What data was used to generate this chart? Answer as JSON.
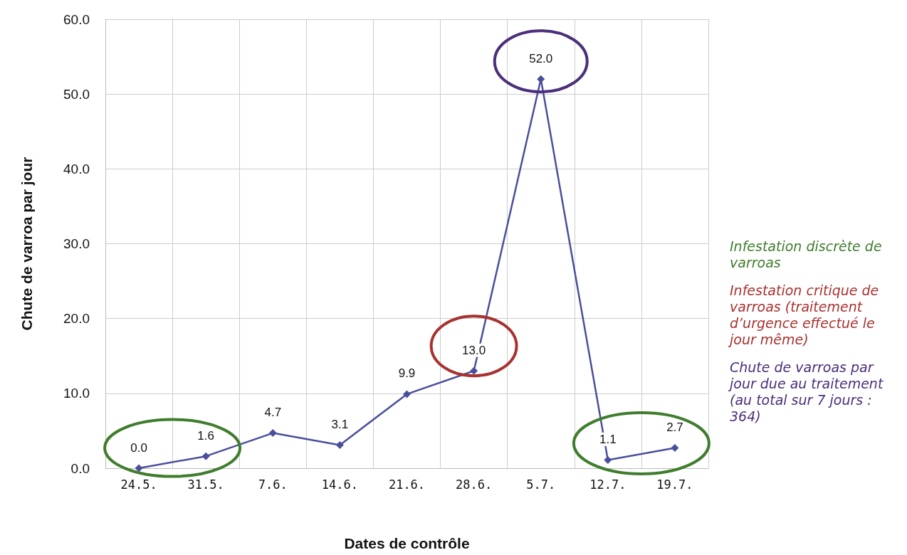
{
  "chart_data": {
    "type": "line",
    "xlabel": "Dates de contrôle",
    "ylabel": "Chute de varroa par jour",
    "categories": [
      "24.5.",
      "31.5.",
      "7.6.",
      "14.6.",
      "21.6.",
      "28.6.",
      "5.7.",
      "12.7.",
      "19.7."
    ],
    "series": [
      {
        "color": "#4a4f9c",
        "values": [
          0.0,
          1.6,
          4.7,
          3.1,
          9.9,
          13.0,
          52.0,
          1.1,
          2.7
        ],
        "value_labels": [
          "0.0",
          "1.6",
          "4.7",
          "3.1",
          "9.9",
          "13.0",
          "52.0",
          "1.1",
          "2.7"
        ]
      }
    ],
    "ylim": [
      0,
      60
    ],
    "yticks": [
      {
        "value": 0,
        "label": "0.0"
      },
      {
        "value": 10,
        "label": "10.0"
      },
      {
        "value": 20,
        "label": "20.0"
      },
      {
        "value": 30,
        "label": "30.0"
      },
      {
        "value": 40,
        "label": "40.0"
      },
      {
        "value": 50,
        "label": "50.0"
      },
      {
        "value": 60,
        "label": "60.0"
      }
    ],
    "grid": true,
    "marker": "diamond",
    "line_style": "solid",
    "annotations": [
      "Infestation discrète de varroas",
      "Infestation critique de varroas (traitement d’urgence effectué le jour même)",
      "Chute de varroas par jour due au traitement (au total sur 7 jours : 364)"
    ]
  }
}
